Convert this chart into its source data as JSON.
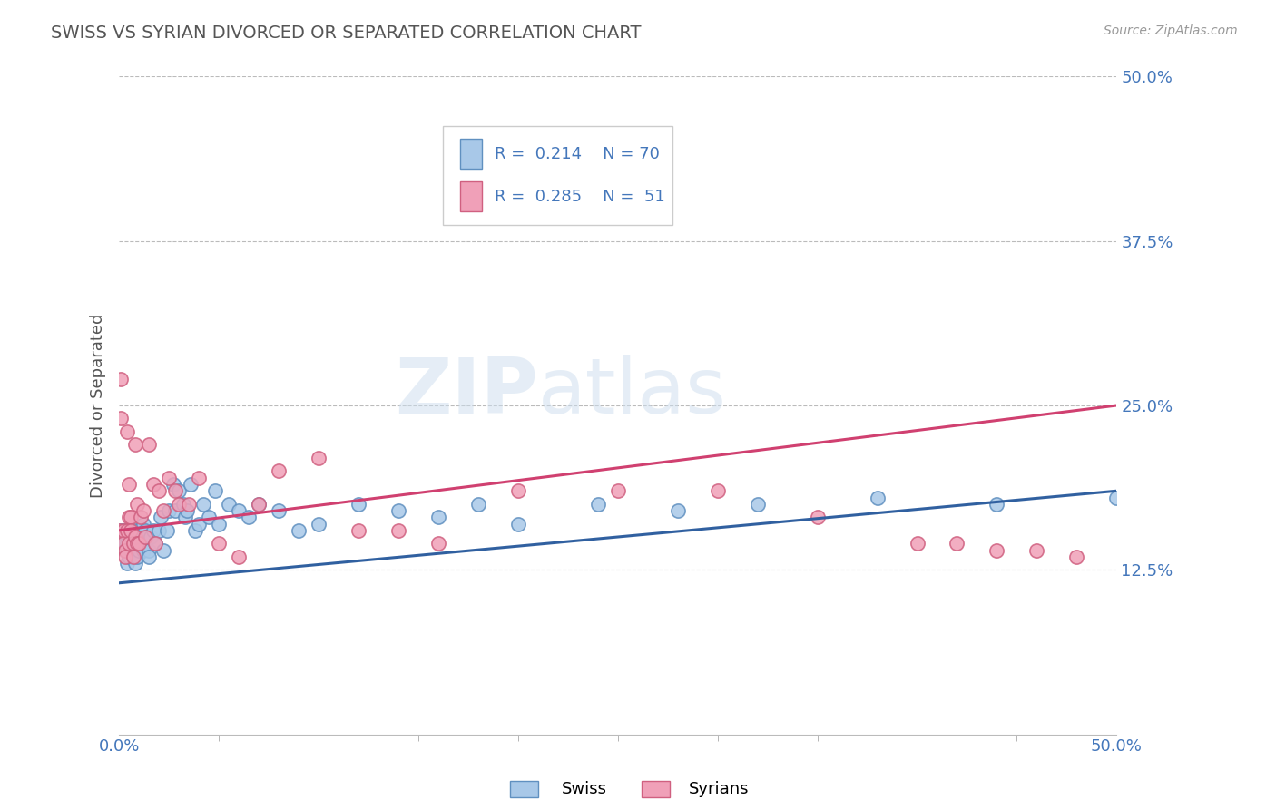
{
  "title": "SWISS VS SYRIAN DIVORCED OR SEPARATED CORRELATION CHART",
  "source": "Source: ZipAtlas.com",
  "ylabel": "Divorced or Separated",
  "xlim": [
    0.0,
    0.5
  ],
  "ylim": [
    0.0,
    0.5
  ],
  "ytick_positions": [
    0.125,
    0.25,
    0.375,
    0.5
  ],
  "ytick_labels": [
    "12.5%",
    "25.0%",
    "37.5%",
    "50.0%"
  ],
  "swiss_color": "#A8C8E8",
  "swiss_edge_color": "#6090C0",
  "syrian_color": "#F0A0B8",
  "syrian_edge_color": "#D06080",
  "swiss_line_color": "#3060A0",
  "syrian_line_color": "#D04070",
  "R_swiss": 0.214,
  "N_swiss": 70,
  "R_syrian": 0.285,
  "N_syrian": 51,
  "swiss_scatter_x": [
    0.001,
    0.002,
    0.003,
    0.003,
    0.004,
    0.004,
    0.004,
    0.005,
    0.005,
    0.005,
    0.006,
    0.006,
    0.007,
    0.007,
    0.007,
    0.008,
    0.008,
    0.008,
    0.009,
    0.009,
    0.009,
    0.01,
    0.01,
    0.01,
    0.012,
    0.012,
    0.013,
    0.013,
    0.014,
    0.015,
    0.015,
    0.016,
    0.017,
    0.018,
    0.02,
    0.021,
    0.022,
    0.024,
    0.025,
    0.027,
    0.028,
    0.03,
    0.032,
    0.033,
    0.034,
    0.036,
    0.038,
    0.04,
    0.042,
    0.045,
    0.048,
    0.05,
    0.055,
    0.06,
    0.065,
    0.07,
    0.08,
    0.09,
    0.1,
    0.12,
    0.14,
    0.16,
    0.18,
    0.2,
    0.24,
    0.28,
    0.32,
    0.38,
    0.44,
    0.5
  ],
  "swiss_scatter_y": [
    0.155,
    0.155,
    0.145,
    0.14,
    0.15,
    0.145,
    0.13,
    0.14,
    0.15,
    0.135,
    0.14,
    0.15,
    0.145,
    0.14,
    0.135,
    0.155,
    0.14,
    0.13,
    0.15,
    0.145,
    0.135,
    0.155,
    0.15,
    0.14,
    0.16,
    0.14,
    0.155,
    0.145,
    0.15,
    0.14,
    0.135,
    0.15,
    0.155,
    0.145,
    0.155,
    0.165,
    0.14,
    0.155,
    0.17,
    0.19,
    0.17,
    0.185,
    0.175,
    0.165,
    0.17,
    0.19,
    0.155,
    0.16,
    0.175,
    0.165,
    0.185,
    0.16,
    0.175,
    0.17,
    0.165,
    0.175,
    0.17,
    0.155,
    0.16,
    0.175,
    0.17,
    0.165,
    0.175,
    0.16,
    0.175,
    0.17,
    0.175,
    0.18,
    0.175,
    0.18
  ],
  "syrian_scatter_x": [
    0.0,
    0.001,
    0.001,
    0.002,
    0.002,
    0.003,
    0.003,
    0.004,
    0.004,
    0.005,
    0.005,
    0.005,
    0.006,
    0.006,
    0.007,
    0.007,
    0.008,
    0.008,
    0.009,
    0.009,
    0.01,
    0.011,
    0.012,
    0.013,
    0.015,
    0.017,
    0.018,
    0.02,
    0.022,
    0.025,
    0.028,
    0.03,
    0.035,
    0.04,
    0.05,
    0.06,
    0.07,
    0.08,
    0.1,
    0.12,
    0.14,
    0.16,
    0.2,
    0.25,
    0.3,
    0.35,
    0.4,
    0.42,
    0.44,
    0.46,
    0.48
  ],
  "syrian_scatter_y": [
    0.155,
    0.27,
    0.24,
    0.155,
    0.145,
    0.14,
    0.135,
    0.155,
    0.23,
    0.145,
    0.19,
    0.165,
    0.165,
    0.155,
    0.135,
    0.145,
    0.22,
    0.15,
    0.175,
    0.145,
    0.145,
    0.165,
    0.17,
    0.15,
    0.22,
    0.19,
    0.145,
    0.185,
    0.17,
    0.195,
    0.185,
    0.175,
    0.175,
    0.195,
    0.145,
    0.135,
    0.175,
    0.2,
    0.21,
    0.155,
    0.155,
    0.145,
    0.185,
    0.185,
    0.185,
    0.165,
    0.145,
    0.145,
    0.14,
    0.14,
    0.135
  ],
  "watermark_zip": "ZIP",
  "watermark_atlas": "atlas",
  "background_color": "#FFFFFF",
  "grid_color": "#BBBBBB",
  "title_color": "#555555",
  "tick_color": "#4477BB",
  "legend_box_color": "#DDDDDD"
}
